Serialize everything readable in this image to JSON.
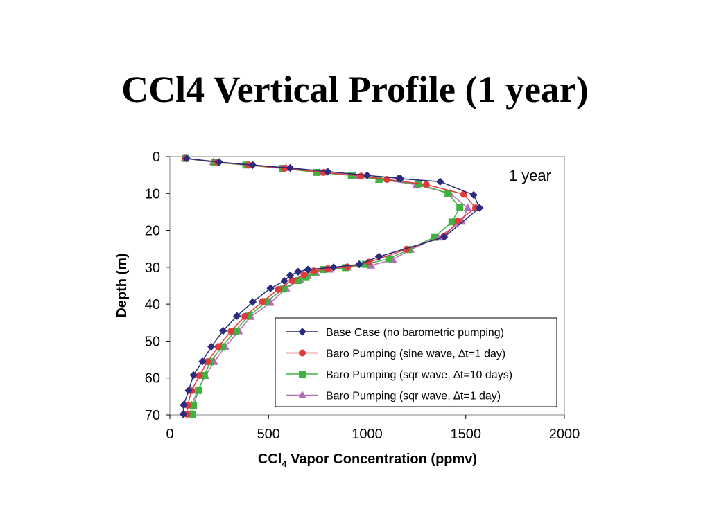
{
  "page": {
    "title": "CCl4 Vertical Profile (1 year)"
  },
  "chart_data": {
    "type": "line",
    "annotation": "1 year",
    "xlabel": {
      "main": "CCl",
      "sub": "4",
      "rest": " Vapor Concentration (ppmv)"
    },
    "ylabel": "Depth (m)",
    "xlim": [
      0,
      2000
    ],
    "ylim": [
      0,
      70
    ],
    "y_inverted": true,
    "x_ticks": [
      "0",
      "500",
      "1000",
      "1500",
      "2000"
    ],
    "y_ticks": [
      "0",
      "10",
      "20",
      "30",
      "40",
      "50",
      "60",
      "70"
    ],
    "legend_position": "bottom-right",
    "grid": false,
    "series": [
      {
        "name": "Base Case (no barometric pumping)",
        "color": "#2a2a7f",
        "marker": "diamond",
        "points": [
          [
            85,
            0.5
          ],
          [
            250,
            1.5
          ],
          [
            420,
            2.3
          ],
          [
            610,
            3.1
          ],
          [
            800,
            4.1
          ],
          [
            1000,
            5.1
          ],
          [
            1160,
            5.9
          ],
          [
            1170,
            6.0
          ],
          [
            1370,
            6.8
          ],
          [
            1540,
            10.4
          ],
          [
            1570,
            13.9
          ],
          [
            1390,
            21.8
          ],
          [
            1060,
            27.1
          ],
          [
            960,
            29.2
          ],
          [
            830,
            30.0
          ],
          [
            700,
            30.6
          ],
          [
            650,
            31.2
          ],
          [
            610,
            32.2
          ],
          [
            580,
            33.7
          ],
          [
            510,
            35.7
          ],
          [
            420,
            39.4
          ],
          [
            340,
            43.2
          ],
          [
            270,
            47.2
          ],
          [
            210,
            51.5
          ],
          [
            165,
            55.5
          ],
          [
            120,
            59.2
          ],
          [
            95,
            63.4
          ],
          [
            70,
            67.3
          ],
          [
            68,
            69.8
          ]
        ]
      },
      {
        "name": "Baro Pumping (sine wave, ∆t=1 day)",
        "color": "#e03b3b",
        "marker": "circle",
        "points": [
          [
            80,
            0.5
          ],
          [
            240,
            1.5
          ],
          [
            400,
            2.3
          ],
          [
            580,
            3.2
          ],
          [
            780,
            4.3
          ],
          [
            970,
            5.3
          ],
          [
            1100,
            6.2
          ],
          [
            1300,
            7.6
          ],
          [
            1490,
            10.2
          ],
          [
            1550,
            13.9
          ],
          [
            1460,
            17.5
          ],
          [
            1390,
            21.6
          ],
          [
            1200,
            25.1
          ],
          [
            1010,
            28.6
          ],
          [
            900,
            29.9
          ],
          [
            800,
            30.4
          ],
          [
            730,
            31.0
          ],
          [
            680,
            32.0
          ],
          [
            620,
            33.6
          ],
          [
            550,
            36.0
          ],
          [
            470,
            39.3
          ],
          [
            380,
            43.3
          ],
          [
            310,
            47.3
          ],
          [
            245,
            51.5
          ],
          [
            190,
            55.6
          ],
          [
            150,
            59.3
          ],
          [
            110,
            63.4
          ],
          [
            90,
            67.4
          ],
          [
            86,
            69.8
          ]
        ]
      },
      {
        "name": "Baro Pumping (sqr  wave, ∆t=10 days)",
        "color": "#3fb33f",
        "marker": "square",
        "points": [
          [
            80,
            0.5
          ],
          [
            225,
            1.5
          ],
          [
            385,
            2.3
          ],
          [
            570,
            3.2
          ],
          [
            745,
            4.3
          ],
          [
            920,
            5.1
          ],
          [
            1060,
            6.2
          ],
          [
            1260,
            7.4
          ],
          [
            1410,
            10.0
          ],
          [
            1470,
            13.8
          ],
          [
            1430,
            17.7
          ],
          [
            1340,
            21.9
          ],
          [
            1210,
            25.2
          ],
          [
            1110,
            27.7
          ],
          [
            990,
            29.2
          ],
          [
            890,
            30.1
          ],
          [
            780,
            30.6
          ],
          [
            730,
            31.5
          ],
          [
            690,
            32.6
          ],
          [
            650,
            33.6
          ],
          [
            575,
            35.9
          ],
          [
            490,
            39.3
          ],
          [
            400,
            43.2
          ],
          [
            330,
            47.3
          ],
          [
            265,
            51.5
          ],
          [
            205,
            55.6
          ],
          [
            175,
            59.3
          ],
          [
            145,
            63.4
          ],
          [
            120,
            67.4
          ],
          [
            115,
            69.8
          ]
        ]
      },
      {
        "name": "Baro Pumping (sqr  wave, ∆t=1 day)",
        "color": "#b66bb6",
        "marker": "triangle",
        "points": [
          [
            75,
            0.5
          ],
          [
            220,
            1.5
          ],
          [
            390,
            2.3
          ],
          [
            590,
            3.1
          ],
          [
            760,
            4.3
          ],
          [
            940,
            5.2
          ],
          [
            1060,
            6.2
          ],
          [
            1250,
            7.6
          ],
          [
            1420,
            10.0
          ],
          [
            1510,
            13.9
          ],
          [
            1480,
            17.6
          ],
          [
            1360,
            21.9
          ],
          [
            1220,
            25.2
          ],
          [
            1130,
            27.9
          ],
          [
            1020,
            29.5
          ],
          [
            900,
            30.0
          ],
          [
            810,
            30.6
          ],
          [
            740,
            31.4
          ],
          [
            700,
            32.3
          ],
          [
            660,
            33.4
          ],
          [
            590,
            35.7
          ],
          [
            510,
            39.6
          ],
          [
            410,
            43.4
          ],
          [
            350,
            47.3
          ],
          [
            280,
            51.5
          ],
          [
            225,
            55.6
          ],
          [
            180,
            59.4
          ],
          [
            140,
            63.4
          ],
          [
            110,
            67.4
          ],
          [
            105,
            69.8
          ]
        ]
      }
    ]
  }
}
